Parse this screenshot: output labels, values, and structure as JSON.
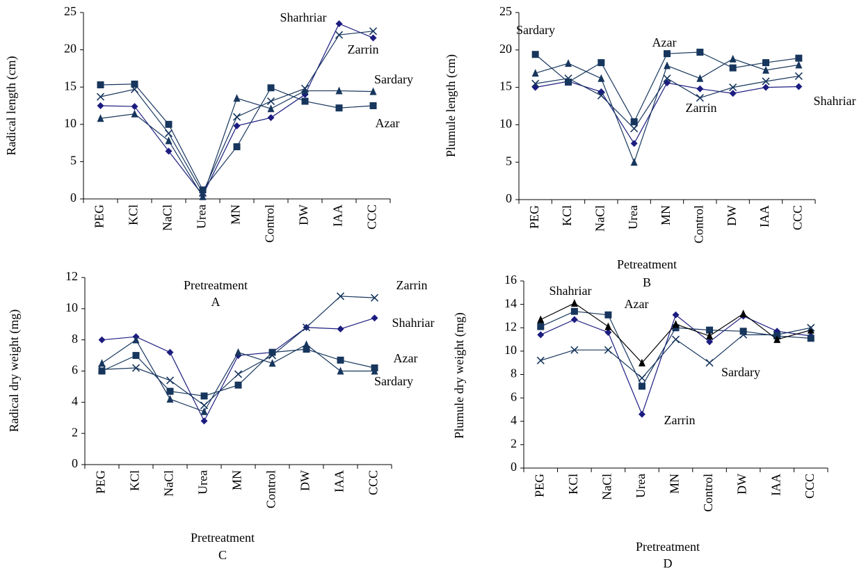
{
  "chart_data": [
    {
      "type": "line",
      "y_label": "Radical length (cm)",
      "x_label": "Pretreatment",
      "panel_label": "A",
      "categories": [
        "PEG",
        "KCl",
        "NaCl",
        "Urea",
        "MN",
        "Control",
        "DW",
        "IAA",
        "CCC"
      ],
      "ylim": [
        0,
        25
      ],
      "yticks": [
        0,
        5,
        10,
        15,
        20,
        25
      ],
      "series": [
        {
          "name": "Sharhriar",
          "color": "#1c1c80",
          "marker": "diamond",
          "values": [
            12.5,
            12.4,
            6.4,
            0.5,
            9.8,
            10.9,
            14.0,
            23.5,
            21.6
          ]
        },
        {
          "name": "Azar",
          "color": "#17365d",
          "marker": "square",
          "values": [
            15.3,
            15.4,
            10.0,
            1.2,
            7.0,
            14.9,
            13.1,
            12.2,
            12.5
          ]
        },
        {
          "name": "Sardary",
          "color": "#17365d",
          "marker": "triangle",
          "values": [
            10.8,
            11.4,
            7.8,
            0.3,
            13.5,
            12.1,
            14.5,
            14.5,
            14.4
          ]
        },
        {
          "name": "Zarrin",
          "color": "#17365d",
          "marker": "x",
          "values": [
            13.7,
            14.7,
            8.8,
            0.8,
            11.0,
            13.1,
            14.8,
            22.0,
            22.5
          ]
        }
      ]
    },
    {
      "type": "line",
      "y_label": "Plumule length (cm)",
      "x_label": "Petreatment",
      "panel_label": "B",
      "categories": [
        "PEG",
        "KCl",
        "NaCl",
        "Urea",
        "MN",
        "Control",
        "DW",
        "IAA",
        "CCC"
      ],
      "ylim": [
        0,
        25
      ],
      "yticks": [
        0,
        5,
        10,
        15,
        20,
        25
      ],
      "series": [
        {
          "name": "Shahriar",
          "color": "#1c1c80",
          "marker": "diamond",
          "values": [
            15.0,
            15.8,
            14.4,
            7.5,
            15.6,
            14.8,
            14.2,
            15.0,
            15.1
          ]
        },
        {
          "name": "Azar",
          "color": "#17365d",
          "marker": "square",
          "values": [
            19.4,
            15.7,
            18.3,
            10.4,
            19.5,
            19.7,
            17.6,
            18.3,
            18.9
          ]
        },
        {
          "name": "Sardary",
          "color": "#17365d",
          "marker": "triangle",
          "values": [
            16.9,
            18.2,
            16.2,
            5.0,
            17.9,
            16.2,
            18.8,
            17.3,
            18.0
          ]
        },
        {
          "name": "Zarrin",
          "color": "#17365d",
          "marker": "x",
          "values": [
            15.5,
            16.2,
            13.9,
            9.5,
            16.2,
            13.6,
            15.0,
            15.8,
            16.5
          ]
        }
      ]
    },
    {
      "type": "line",
      "y_label": "Radical dry weight (mg)",
      "x_label": "Pretreatment",
      "panel_label": "C",
      "categories": [
        "PEG",
        "KCl",
        "NaCl",
        "Urea",
        "MN",
        "Control",
        "DW",
        "IAA",
        "CCC"
      ],
      "ylim": [
        0,
        12
      ],
      "yticks": [
        0,
        2,
        4,
        6,
        8,
        10,
        12
      ],
      "series": [
        {
          "name": "Shahriar",
          "color": "#1c1c80",
          "marker": "diamond",
          "values": [
            8.0,
            8.2,
            7.2,
            2.8,
            7.0,
            7.2,
            8.8,
            8.7,
            9.4
          ]
        },
        {
          "name": "Azar",
          "color": "#17365d",
          "marker": "square",
          "values": [
            6.0,
            7.0,
            4.7,
            4.4,
            5.1,
            7.2,
            7.4,
            6.7,
            6.2
          ]
        },
        {
          "name": "Sardary",
          "color": "#17365d",
          "marker": "triangle",
          "values": [
            6.5,
            8.0,
            4.2,
            3.4,
            7.2,
            6.5,
            7.7,
            6.0,
            6.0
          ]
        },
        {
          "name": "Zarrin",
          "color": "#17365d",
          "marker": "x",
          "values": [
            6.1,
            6.2,
            5.4,
            3.8,
            5.8,
            7.0,
            8.8,
            10.8,
            10.7
          ]
        }
      ]
    },
    {
      "type": "line",
      "y_label": "Plumule dry weight (mg)",
      "x_label": "Pretreatment",
      "panel_label": "D",
      "categories": [
        "PEG",
        "KCl",
        "NaCl",
        "Urea",
        "MN",
        "Control",
        "DW",
        "IAA",
        "CCC"
      ],
      "ylim": [
        0,
        16
      ],
      "yticks": [
        0,
        2,
        4,
        6,
        8,
        10,
        12,
        14,
        16
      ],
      "series": [
        {
          "name": "Shahriar",
          "color": "#1c1c80",
          "marker": "diamond",
          "values": [
            11.4,
            12.7,
            11.6,
            4.6,
            13.1,
            10.8,
            13.0,
            11.7,
            11.3
          ]
        },
        {
          "name": "Azar",
          "color": "#17365d",
          "marker": "square",
          "values": [
            12.1,
            13.4,
            13.1,
            7.0,
            12.0,
            11.8,
            11.7,
            11.3,
            11.1
          ]
        },
        {
          "name": "Sardary",
          "color": "#000000",
          "marker": "triangle",
          "values": [
            12.7,
            14.1,
            12.1,
            9.0,
            12.3,
            11.3,
            13.2,
            11.0,
            11.8
          ]
        },
        {
          "name": "Zarrin",
          "color": "#17365d",
          "marker": "x",
          "values": [
            9.2,
            10.1,
            10.1,
            7.7,
            11.0,
            9.0,
            11.4,
            11.4,
            12.0
          ]
        }
      ]
    }
  ]
}
